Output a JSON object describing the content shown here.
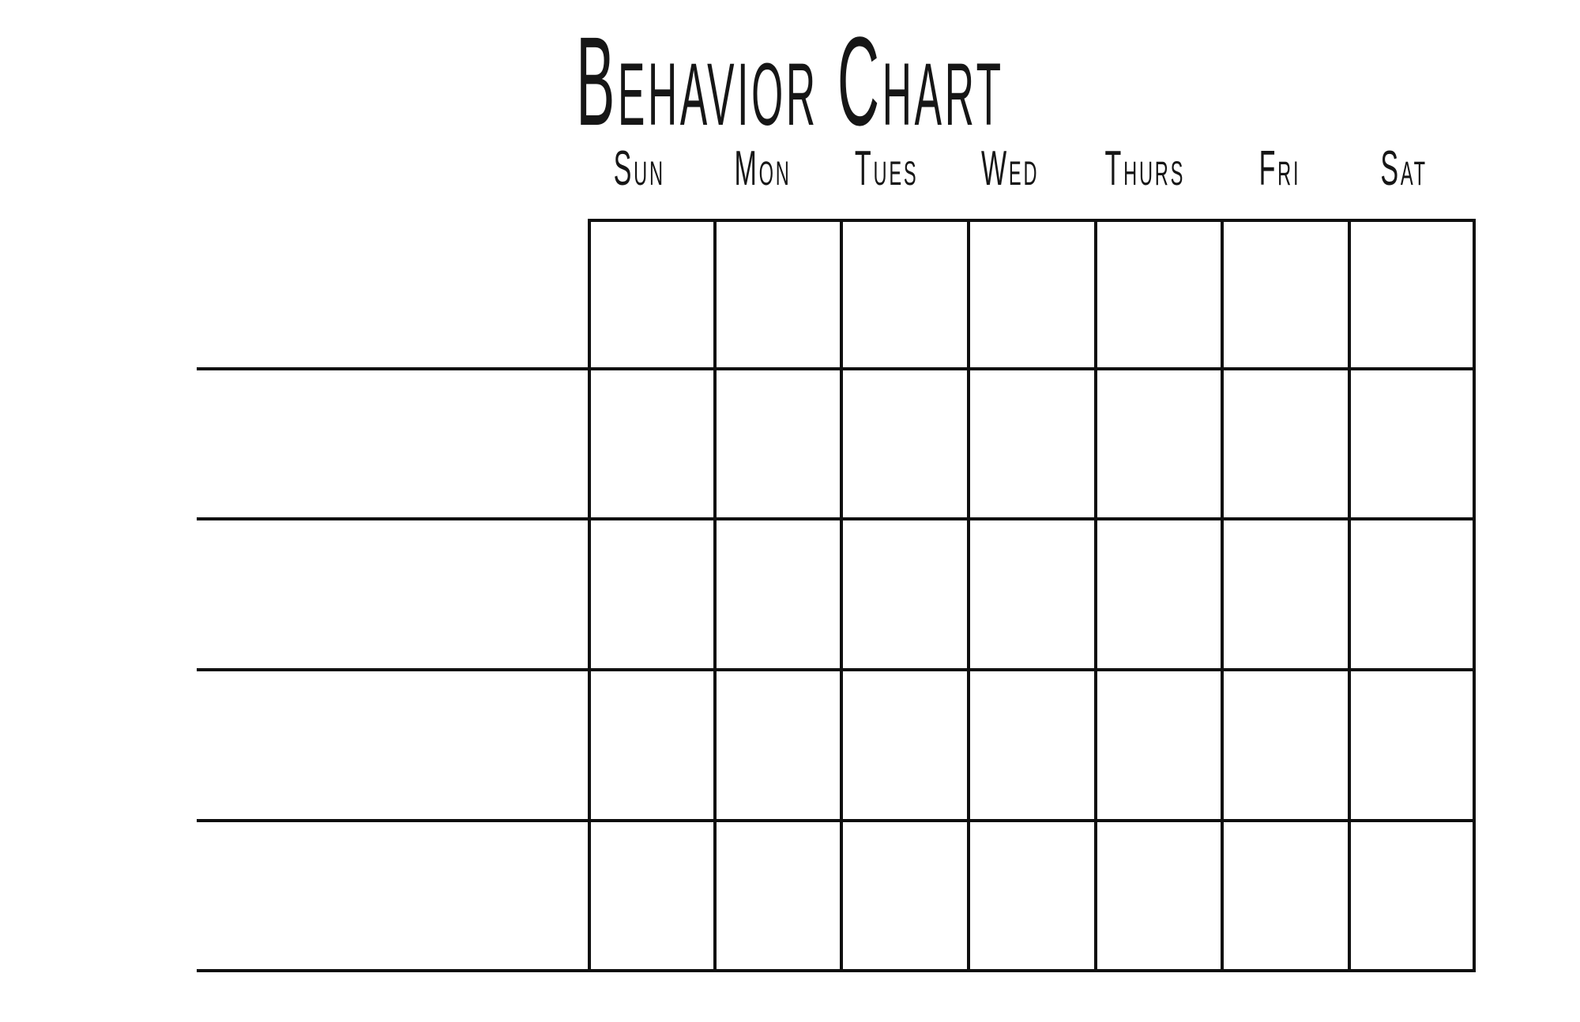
{
  "title": "Behavior Chart",
  "calendar": {
    "day_headers": [
      "Sun",
      "Mon",
      "Tues",
      "Wed",
      "Thurs",
      "Fri",
      "Sat"
    ],
    "num_day_columns": 7,
    "num_behavior_rows": 5,
    "rows": [
      {
        "label": "",
        "cells": [
          "",
          "",
          "",
          "",
          "",
          "",
          ""
        ]
      },
      {
        "label": "",
        "cells": [
          "",
          "",
          "",
          "",
          "",
          "",
          ""
        ]
      },
      {
        "label": "",
        "cells": [
          "",
          "",
          "",
          "",
          "",
          "",
          ""
        ]
      },
      {
        "label": "",
        "cells": [
          "",
          "",
          "",
          "",
          "",
          "",
          ""
        ]
      },
      {
        "label": "",
        "cells": [
          "",
          "",
          "",
          "",
          "",
          "",
          ""
        ]
      }
    ]
  },
  "colors": {
    "line": "#0f0f0f",
    "text": "#161616",
    "background": "#ffffff"
  }
}
